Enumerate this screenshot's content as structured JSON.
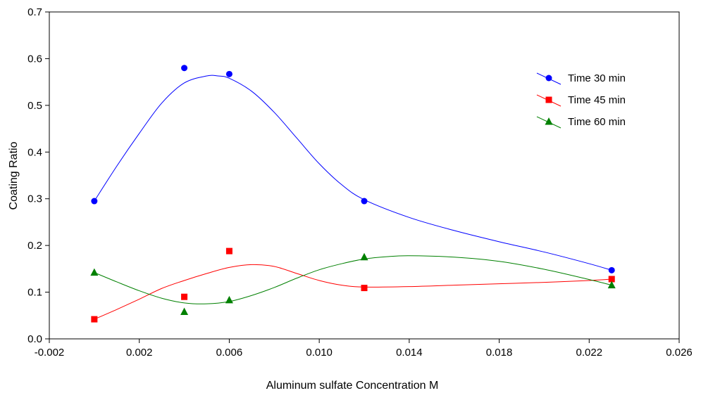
{
  "chart_data": {
    "type": "scatter",
    "title": "",
    "xlabel": "Aluminum sulfate Concentration M",
    "ylabel": "Coating Ratio",
    "xlim": [
      -0.002,
      0.026
    ],
    "ylim": [
      0.0,
      0.7
    ],
    "x_ticks": [
      -0.002,
      0.002,
      0.006,
      0.01,
      0.014,
      0.018,
      0.022,
      0.026
    ],
    "x_tick_labels": [
      "-0.002",
      "0.002",
      "0.006",
      "0.010",
      "0.014",
      "0.018",
      "0.022",
      "0.026"
    ],
    "y_ticks": [
      0.0,
      0.1,
      0.2,
      0.3,
      0.4,
      0.5,
      0.6,
      0.7
    ],
    "y_tick_labels": [
      "0.0",
      "0.1",
      "0.2",
      "0.3",
      "0.4",
      "0.5",
      "0.6",
      "0.7"
    ],
    "grid": false,
    "legend_position": "top-right",
    "series": [
      {
        "name": "Time 30 min",
        "marker": "circle",
        "color": "#0000ff",
        "points": [
          [
            0.0,
            0.295
          ],
          [
            0.004,
            0.58
          ],
          [
            0.006,
            0.567
          ],
          [
            0.012,
            0.295
          ],
          [
            0.023,
            0.147
          ]
        ],
        "fit_curve": [
          [
            0.0,
            0.295
          ],
          [
            0.001,
            0.37
          ],
          [
            0.002,
            0.44
          ],
          [
            0.003,
            0.505
          ],
          [
            0.004,
            0.548
          ],
          [
            0.005,
            0.563
          ],
          [
            0.0055,
            0.563
          ],
          [
            0.006,
            0.558
          ],
          [
            0.007,
            0.53
          ],
          [
            0.008,
            0.485
          ],
          [
            0.009,
            0.43
          ],
          [
            0.01,
            0.375
          ],
          [
            0.011,
            0.33
          ],
          [
            0.012,
            0.298
          ],
          [
            0.014,
            0.26
          ],
          [
            0.016,
            0.232
          ],
          [
            0.018,
            0.208
          ],
          [
            0.02,
            0.186
          ],
          [
            0.022,
            0.161
          ],
          [
            0.023,
            0.147
          ]
        ]
      },
      {
        "name": "Time 45 min",
        "marker": "square",
        "color": "#ff0000",
        "points": [
          [
            0.0,
            0.042
          ],
          [
            0.004,
            0.09
          ],
          [
            0.006,
            0.188
          ],
          [
            0.012,
            0.109
          ],
          [
            0.023,
            0.128
          ]
        ],
        "fit_curve": [
          [
            0.0,
            0.042
          ],
          [
            0.001,
            0.063
          ],
          [
            0.002,
            0.085
          ],
          [
            0.003,
            0.108
          ],
          [
            0.004,
            0.125
          ],
          [
            0.005,
            0.14
          ],
          [
            0.006,
            0.153
          ],
          [
            0.007,
            0.159
          ],
          [
            0.008,
            0.155
          ],
          [
            0.009,
            0.14
          ],
          [
            0.01,
            0.125
          ],
          [
            0.011,
            0.115
          ],
          [
            0.012,
            0.111
          ],
          [
            0.014,
            0.112
          ],
          [
            0.016,
            0.115
          ],
          [
            0.018,
            0.118
          ],
          [
            0.02,
            0.121
          ],
          [
            0.022,
            0.125
          ],
          [
            0.023,
            0.128
          ]
        ]
      },
      {
        "name": "Time 60 min",
        "marker": "triangle",
        "color": "#008000",
        "points": [
          [
            0.0,
            0.142
          ],
          [
            0.004,
            0.058
          ],
          [
            0.006,
            0.083
          ],
          [
            0.012,
            0.175
          ],
          [
            0.023,
            0.115
          ]
        ],
        "fit_curve": [
          [
            0.0,
            0.142
          ],
          [
            0.001,
            0.122
          ],
          [
            0.002,
            0.103
          ],
          [
            0.003,
            0.087
          ],
          [
            0.004,
            0.077
          ],
          [
            0.005,
            0.075
          ],
          [
            0.006,
            0.08
          ],
          [
            0.007,
            0.093
          ],
          [
            0.008,
            0.11
          ],
          [
            0.009,
            0.13
          ],
          [
            0.01,
            0.148
          ],
          [
            0.011,
            0.161
          ],
          [
            0.012,
            0.171
          ],
          [
            0.013,
            0.176
          ],
          [
            0.014,
            0.178
          ],
          [
            0.016,
            0.175
          ],
          [
            0.018,
            0.166
          ],
          [
            0.02,
            0.149
          ],
          [
            0.022,
            0.127
          ],
          [
            0.023,
            0.115
          ]
        ]
      }
    ]
  }
}
